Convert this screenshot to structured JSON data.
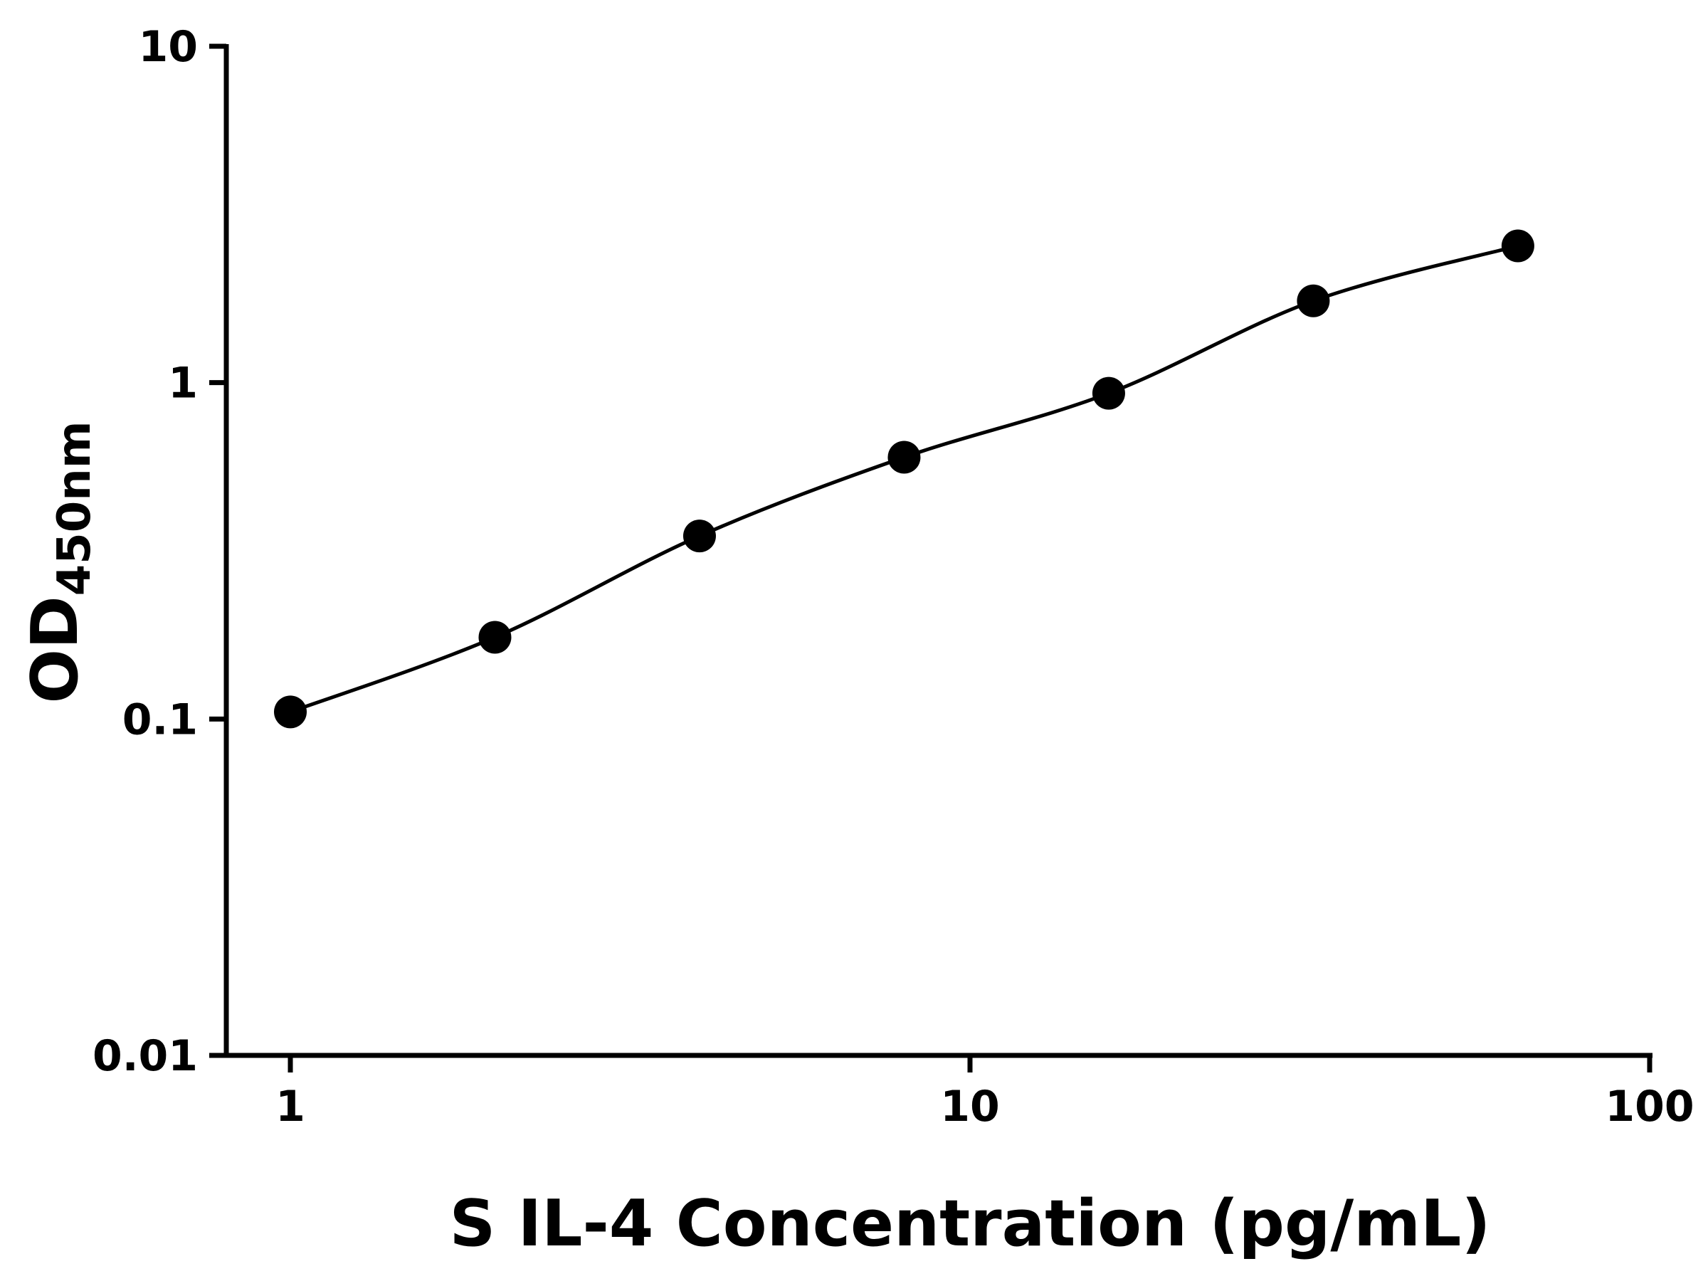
{
  "figure": {
    "background": "#ffffff"
  },
  "chart_data": {
    "type": "scatter",
    "subtype": "standard-curve-with-fit-line",
    "title": "",
    "xlabel": "S IL-4 Concentration (pg/mL)",
    "ylabel_main": "OD",
    "ylabel_sub": "450nm",
    "xscale": "log",
    "yscale": "log",
    "xlim": [
      1,
      100
    ],
    "ylim": [
      0.01,
      10
    ],
    "x": [
      1,
      2,
      4,
      8,
      16,
      32,
      64
    ],
    "y": [
      0.105,
      0.175,
      0.35,
      0.6,
      0.93,
      1.75,
      2.55
    ],
    "x_ticks": [
      {
        "value": 1,
        "label": "1"
      },
      {
        "value": 10,
        "label": "10"
      },
      {
        "value": 100,
        "label": "100"
      }
    ],
    "y_ticks": [
      {
        "value": 0.01,
        "label": "0.01"
      },
      {
        "value": 0.1,
        "label": "0.1"
      },
      {
        "value": 1,
        "label": "1"
      },
      {
        "value": 10,
        "label": "10"
      }
    ],
    "grid": false,
    "legend": false,
    "line_color": "#000000",
    "marker_color": "#000000",
    "axis_color": "#000000",
    "marker_shape": "circle"
  }
}
